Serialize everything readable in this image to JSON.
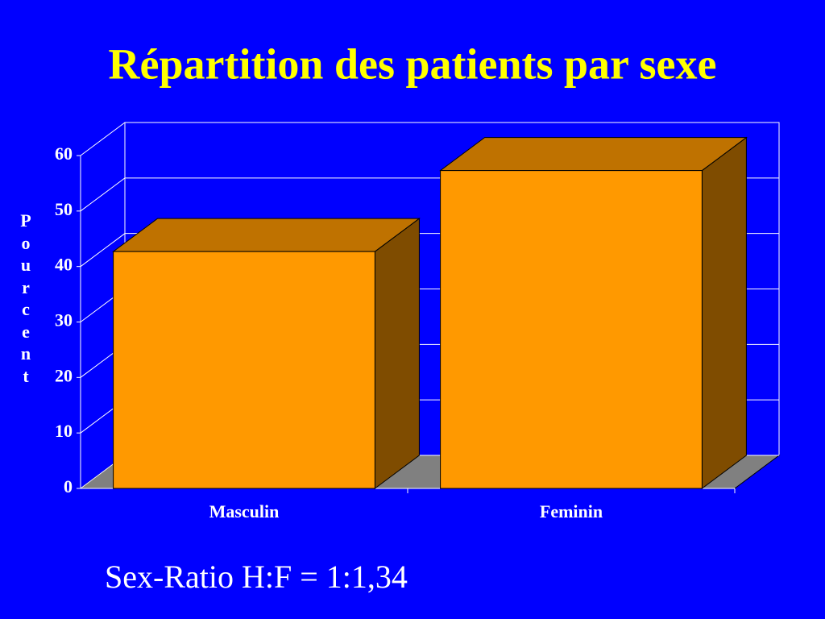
{
  "chart_data": {
    "type": "bar3d",
    "title": "Répartition des patients par sexe",
    "y_label": "Pourcent",
    "categories": [
      "Masculin",
      "Feminin"
    ],
    "values": [
      42.7,
      57.3
    ],
    "color": "#ff9900",
    "ylim": [
      0,
      60
    ],
    "yticks": [
      0,
      10,
      20,
      30,
      40,
      50,
      60
    ],
    "grid": true,
    "annotation": "Sex-Ratio H:F = 1:1,34"
  }
}
